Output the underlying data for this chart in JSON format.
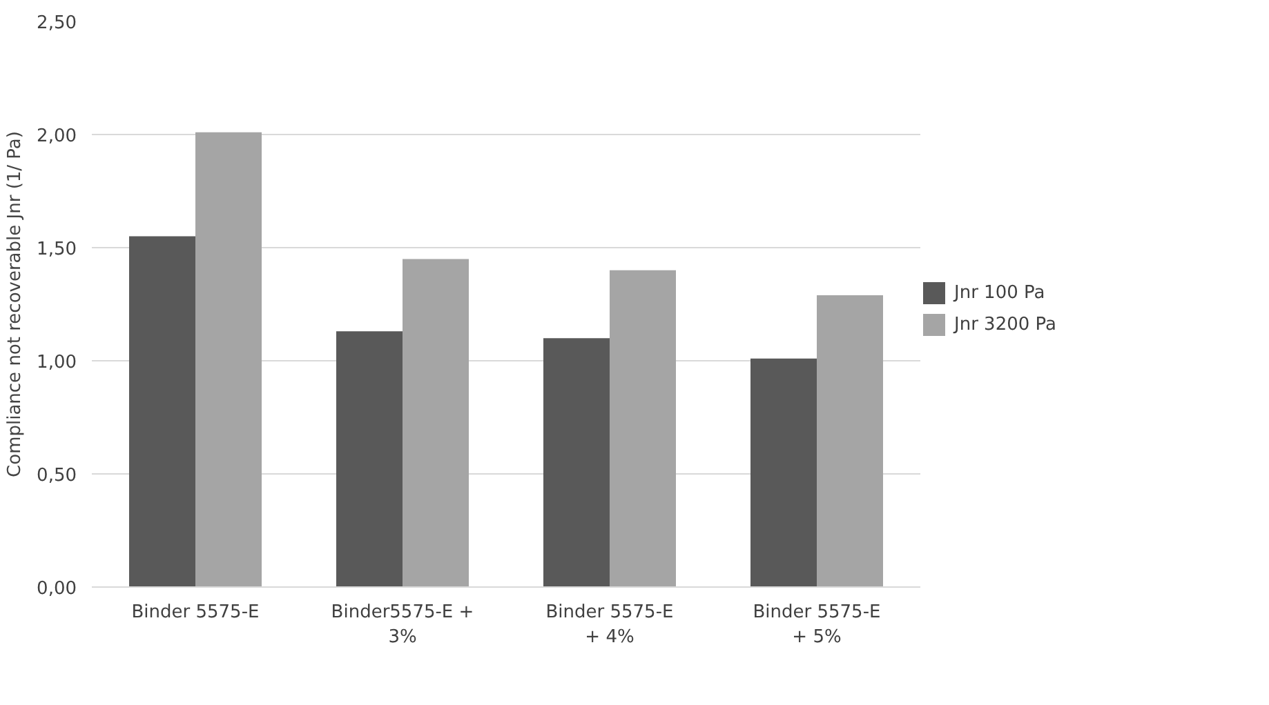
{
  "chart_data": {
    "type": "bar",
    "ylabel": "Compliance not recoverable Jnr (1/ Pa)",
    "categories": [
      "Binder 5575-E",
      "Binder5575-E +\n3%",
      "Binder 5575-E\n+ 4%",
      "Binder 5575-E\n+ 5%"
    ],
    "series": [
      {
        "name": "Jnr 100 Pa",
        "color": "#595959",
        "values": [
          1.55,
          1.13,
          1.1,
          1.01
        ]
      },
      {
        "name": "Jnr 3200 Pa",
        "color": "#a5a5a5",
        "values": [
          2.01,
          1.45,
          1.4,
          1.29
        ]
      }
    ],
    "ylim": [
      0,
      2.5
    ],
    "yticks": [
      {
        "value": 0,
        "label": "0,00"
      },
      {
        "value": 0.5,
        "label": "0,50"
      },
      {
        "value": 1,
        "label": "1,00"
      },
      {
        "value": 1.5,
        "label": "1,50"
      },
      {
        "value": 2,
        "label": "2,00"
      },
      {
        "value": 2.5,
        "label": "2,50"
      }
    ],
    "grid": "y",
    "legend": "right"
  }
}
